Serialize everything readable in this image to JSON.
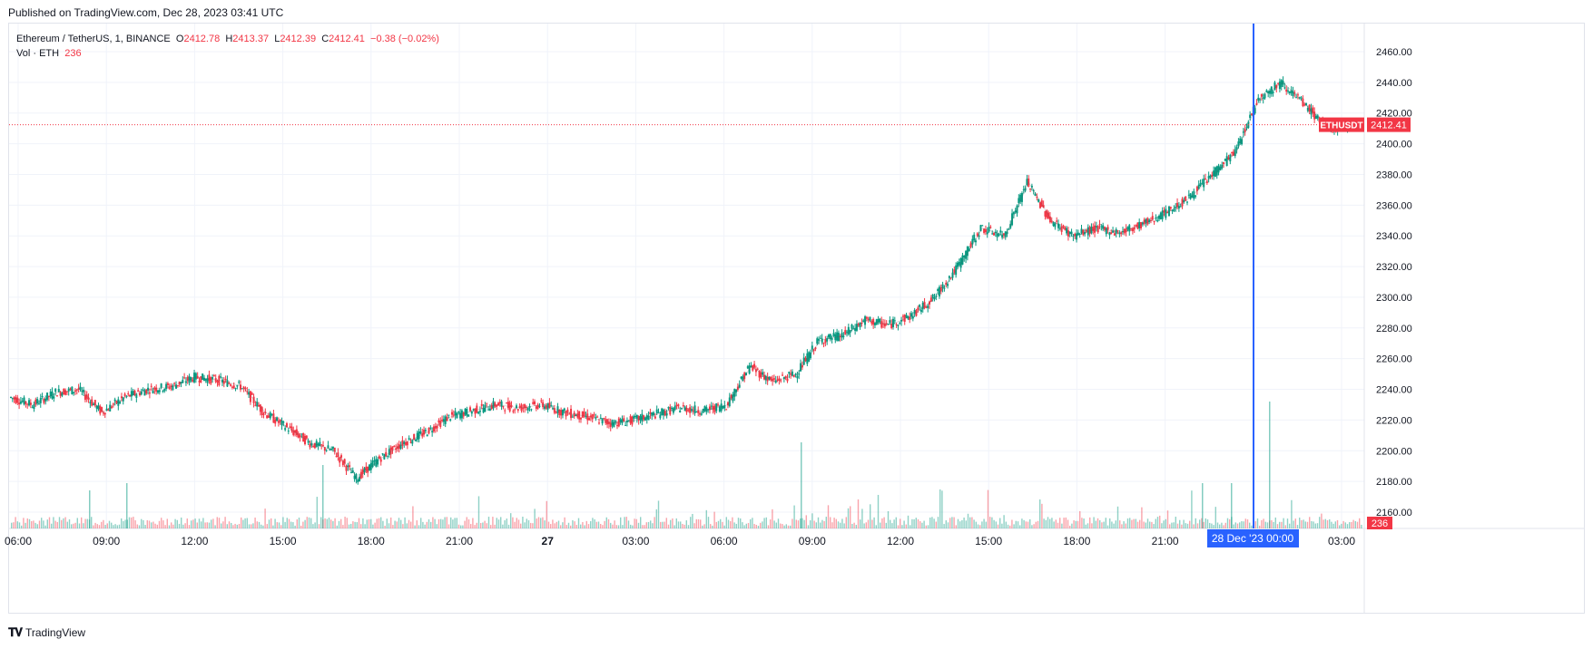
{
  "header": {
    "published": "Published on TradingView.com, Dec 28, 2023 03:41 UTC"
  },
  "legend": {
    "symbol": "Ethereum / TetherUS, 1, BINANCE",
    "o_label": "O",
    "o": "2412.78",
    "h_label": "H",
    "h": "2413.37",
    "l_label": "L",
    "l": "2412.39",
    "c_label": "C",
    "c": "2412.41",
    "change": "−0.38 (−0.02%)",
    "vol_label": "Vol · ETH",
    "vol": "236"
  },
  "price_axis": {
    "ticks": [
      "2460.00",
      "2440.00",
      "2420.00",
      "2400.00",
      "2380.00",
      "2360.00",
      "2340.00",
      "2320.00",
      "2300.00",
      "2280.00",
      "2260.00",
      "2240.00",
      "2220.00",
      "2200.00",
      "2180.00",
      "2160.00"
    ],
    "last_price_symbol": "ETHUSDT",
    "last_price": "2412.41",
    "last_volume": "236"
  },
  "time_axis": {
    "ticks": [
      "06:00",
      "09:00",
      "12:00",
      "15:00",
      "18:00",
      "21:00",
      "27",
      "03:00",
      "06:00",
      "09:00",
      "12:00",
      "15:00",
      "18:00",
      "21:00",
      "00:00",
      "03:00"
    ],
    "crosshair_label": "28 Dec '23   00:00"
  },
  "footer": {
    "logo_text": "TradingView"
  },
  "colors": {
    "up": "#089981",
    "down": "#f23645",
    "crosshair": "#2962ff",
    "grid": "#f0f3fa",
    "axis_text": "#131722"
  },
  "chart_data": {
    "type": "line",
    "title": "Ethereum / TetherUS, 1, BINANCE",
    "xlabel": "",
    "ylabel": "",
    "x": [
      "26 Dec 06:00",
      "07:00",
      "08:00",
      "09:00",
      "10:00",
      "11:00",
      "12:00",
      "13:00",
      "14:00",
      "15:00",
      "15:30",
      "16:00",
      "16:30",
      "17:00",
      "17:30",
      "17:45",
      "18:00",
      "18:30",
      "19:00",
      "20:00",
      "21:00",
      "22:00",
      "23:00",
      "27 Dec 00:00",
      "01:00",
      "02:00",
      "03:00",
      "04:00",
      "05:00",
      "06:00",
      "07:00",
      "08:00",
      "08:45",
      "09:00",
      "10:00",
      "10:30",
      "11:00",
      "12:00",
      "13:00",
      "14:00",
      "15:00",
      "15:30",
      "16:00",
      "16:30",
      "17:00",
      "18:00",
      "19:00",
      "20:00",
      "21:00",
      "22:00",
      "23:00",
      "23:30",
      "28 Dec 00:00",
      "00:15",
      "00:30",
      "01:00",
      "01:30",
      "02:00",
      "03:00"
    ],
    "series": [
      {
        "values": [
          2235,
          2230,
          2238,
          2240,
          2225,
          2235,
          2240,
          2242,
          2248,
          2246,
          2242,
          2225,
          2215,
          2205,
          2200,
          2182,
          2195,
          2205,
          2212,
          2222,
          2226,
          2230,
          2228,
          2230,
          2225,
          2222,
          2218,
          2220,
          2224,
          2228,
          2226,
          2230,
          2255,
          2245,
          2250,
          2272,
          2275,
          2285,
          2282,
          2288,
          2300,
          2320,
          2345,
          2340,
          2375,
          2350,
          2340,
          2345,
          2342,
          2348,
          2355,
          2365,
          2380,
          2395,
          2430,
          2440,
          2425,
          2410,
          2412.41
        ]
      }
    ],
    "volume_highlights": [
      {
        "x": "08:45",
        "note": "spike"
      },
      {
        "x": "28 Dec 00:00",
        "note": "spike"
      }
    ],
    "ylim": [
      2150,
      2470
    ],
    "last_price": 2412.41,
    "last_volume": 236,
    "grid": true,
    "legend": "top-left"
  }
}
